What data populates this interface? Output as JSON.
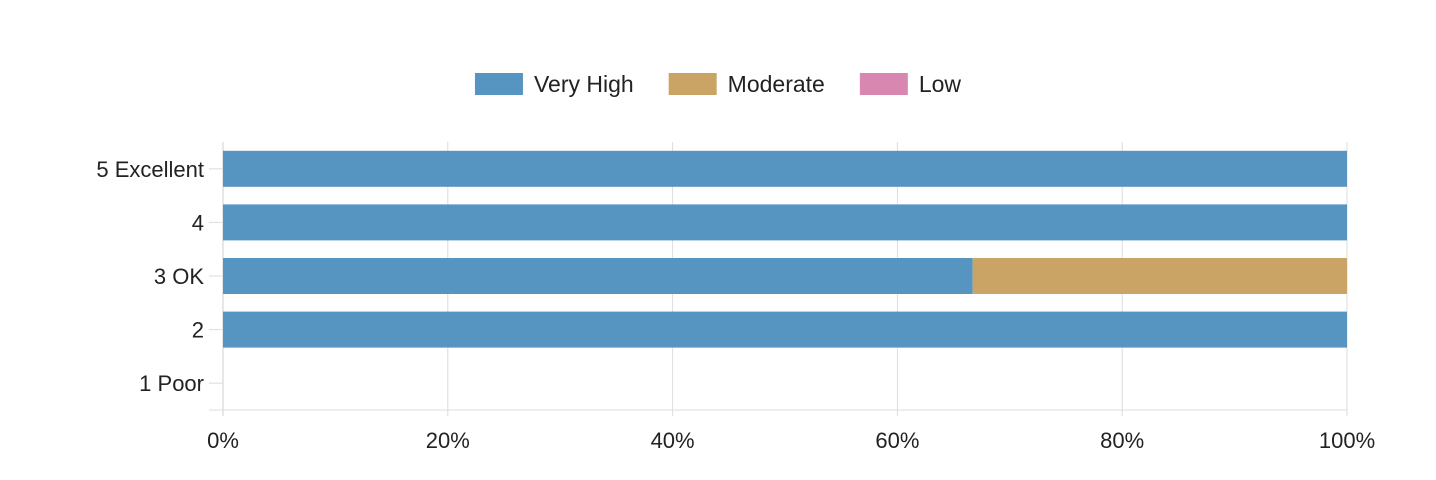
{
  "chart_data": {
    "type": "bar",
    "orientation": "horizontal",
    "stacked": true,
    "percent": true,
    "categories": [
      "5 Excellent",
      "4",
      "3 OK",
      "2",
      "1 Poor"
    ],
    "series": [
      {
        "name": "Very High",
        "color": "#5694c1",
        "values": [
          100,
          100,
          66.7,
          100,
          0
        ]
      },
      {
        "name": "Moderate",
        "color": "#c9a464",
        "values": [
          0,
          0,
          33.3,
          0,
          0
        ]
      },
      {
        "name": "Low",
        "color": "#d887b0",
        "values": [
          0,
          0,
          0,
          0,
          0
        ]
      }
    ],
    "xticks": [
      "0%",
      "20%",
      "40%",
      "60%",
      "80%",
      "100%"
    ],
    "xlim": [
      0,
      100
    ],
    "grid": true,
    "legend_position": "top-center",
    "title": "",
    "xlabel": "",
    "ylabel": ""
  }
}
